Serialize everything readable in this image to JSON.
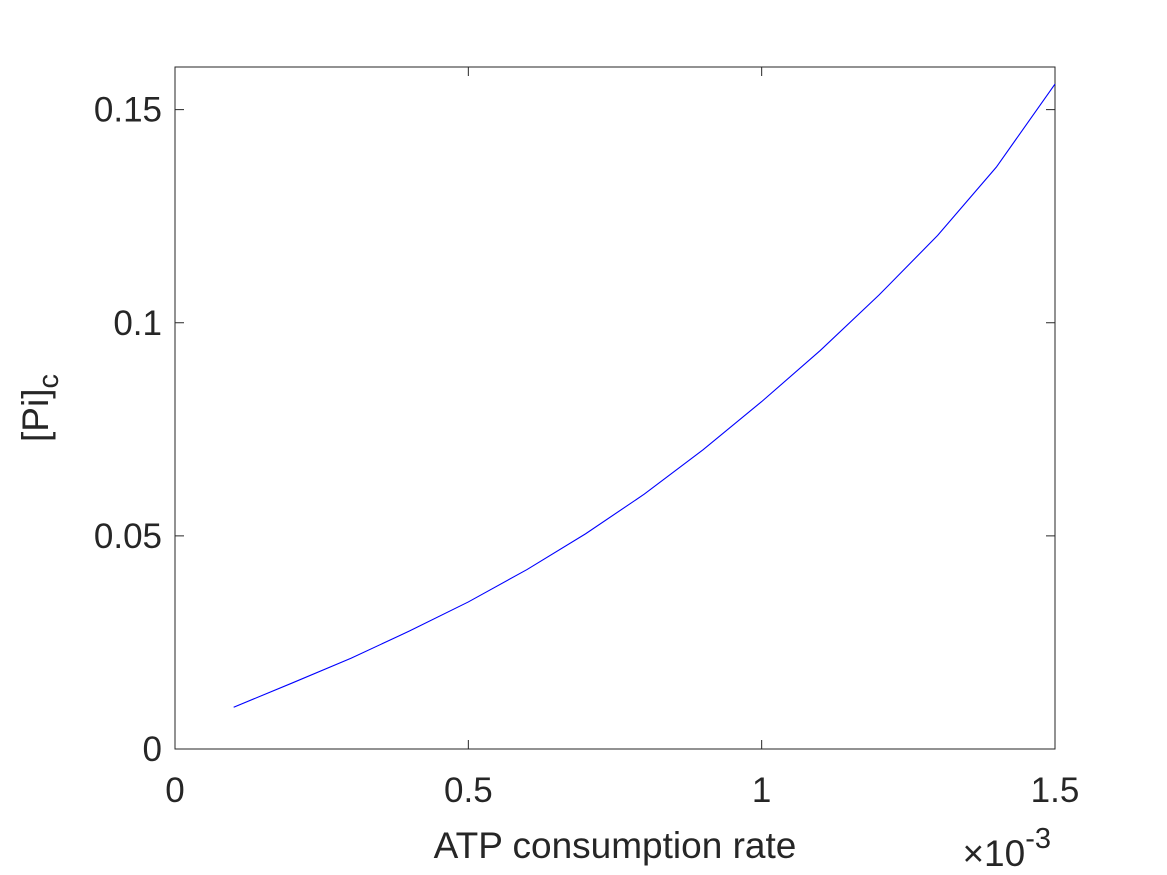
{
  "chart_data": {
    "type": "line",
    "title": "",
    "xlabel": "ATP consumption rate",
    "ylabel_main": "[Pi]",
    "ylabel_sub": "c",
    "x_exponent_prefix": "×10",
    "x_exponent": "-3",
    "xlim": [
      0,
      0.0015
    ],
    "ylim": [
      0,
      0.16
    ],
    "xticks": [
      0,
      0.0005,
      0.001,
      0.0015
    ],
    "xtick_labels": [
      "0",
      "0.5",
      "1",
      "1.5"
    ],
    "yticks": [
      0,
      0.05,
      0.1,
      0.15
    ],
    "ytick_labels": [
      "0",
      "0.05",
      "0.1",
      "0.15"
    ],
    "grid": false,
    "colors": {
      "series": "#0000ff",
      "axes": "#262626"
    },
    "series": [
      {
        "x": [
          0.0001,
          0.0002,
          0.0003,
          0.0004,
          0.0005,
          0.0006,
          0.0007,
          0.0008,
          0.0009,
          0.001,
          0.0011,
          0.0012,
          0.0013,
          0.0014,
          0.0015
        ],
        "y": [
          0.0098,
          0.0155,
          0.0213,
          0.0277,
          0.0345,
          0.0421,
          0.0505,
          0.0598,
          0.0702,
          0.0815,
          0.0935,
          0.1065,
          0.1205,
          0.1365,
          0.156
        ]
      }
    ]
  }
}
